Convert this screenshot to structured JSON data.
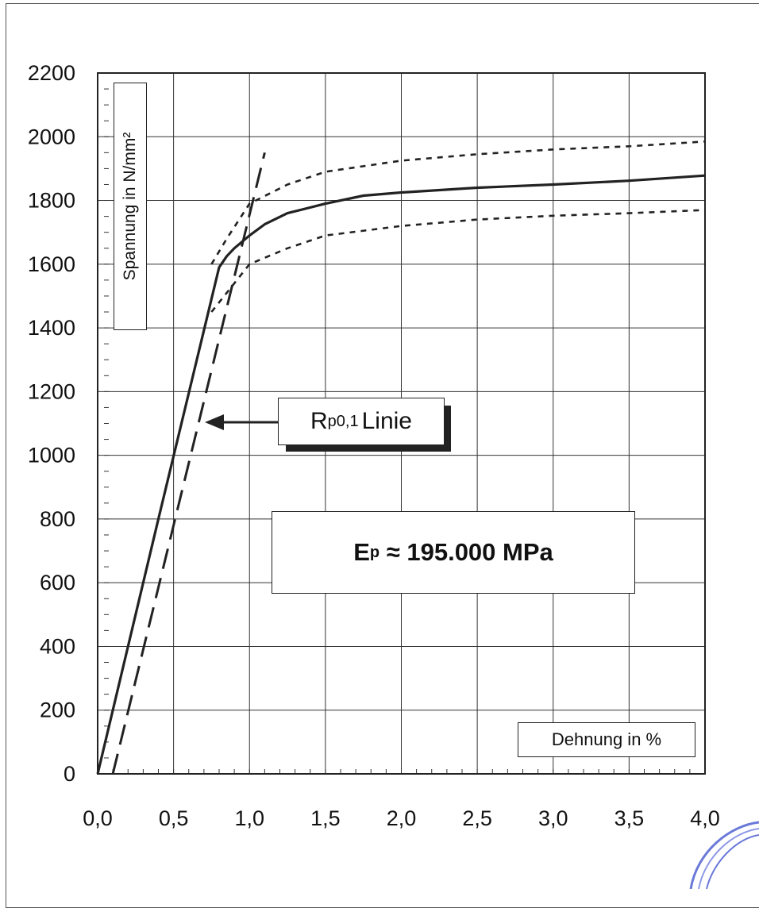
{
  "chart_data": {
    "type": "line",
    "ylabel": "Spannung in N/mm²",
    "xlabel": "Dehnung in %",
    "xlim": [
      0,
      4.0
    ],
    "ylim": [
      0,
      2200
    ],
    "x_ticks": [
      "0,0",
      "0,5",
      "1,0",
      "1,5",
      "2,0",
      "2,5",
      "3,0",
      "3,5",
      "4,0"
    ],
    "y_ticks": [
      "0",
      "200",
      "400",
      "600",
      "800",
      "1000",
      "1200",
      "1400",
      "1600",
      "1800",
      "2000",
      "2200"
    ],
    "grid": true,
    "series": [
      {
        "style": "solid",
        "x": [
          0,
          0.4,
          0.8,
          0.85,
          0.9,
          1.0,
          1.1,
          1.25,
          1.5,
          1.75,
          2.0,
          2.5,
          3.0,
          3.5,
          4.0
        ],
        "y": [
          0,
          800,
          1590,
          1625,
          1650,
          1690,
          1725,
          1760,
          1790,
          1815,
          1825,
          1840,
          1850,
          1862,
          1878
        ]
      },
      {
        "style": "dotted",
        "x": [
          0.75,
          0.85,
          1.0,
          1.25,
          1.5,
          2.0,
          2.5,
          3.0,
          3.5,
          4.0
        ],
        "y": [
          1600,
          1680,
          1790,
          1850,
          1890,
          1925,
          1945,
          1960,
          1970,
          1985
        ]
      },
      {
        "style": "dotted",
        "x": [
          0.75,
          0.85,
          1.0,
          1.25,
          1.5,
          2.0,
          2.5,
          3.0,
          3.5,
          4.0
        ],
        "y": [
          1450,
          1510,
          1600,
          1650,
          1690,
          1720,
          1740,
          1752,
          1760,
          1770
        ]
      },
      {
        "style": "dashed",
        "x": [
          0.1,
          1.1
        ],
        "y": [
          0,
          1950
        ]
      }
    ],
    "annotations": {
      "rp_prefix": "R",
      "rp_sub": "p0,1",
      "rp_suffix": "Linie",
      "ep_prefix": "E",
      "ep_sub": "p",
      "ep_value": "≈ 195.000 MPa"
    },
    "colors": {
      "line": "#222222",
      "grid": "#333333"
    }
  }
}
